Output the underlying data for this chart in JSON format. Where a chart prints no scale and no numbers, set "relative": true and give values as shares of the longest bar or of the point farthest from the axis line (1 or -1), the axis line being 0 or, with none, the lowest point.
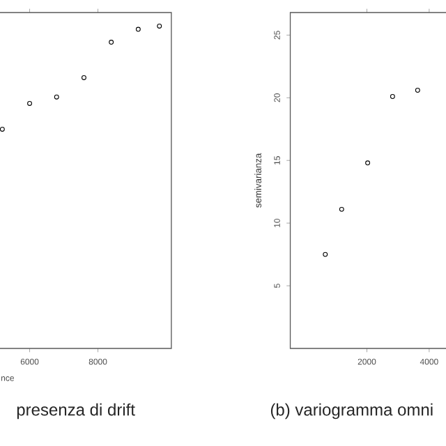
{
  "chart_data": [
    {
      "type": "scatter",
      "title": "presenza di drift",
      "xlabel": "nce",
      "relative": true,
      "marker": "circle",
      "grid": false,
      "x": [
        5200,
        6000,
        6790,
        7590,
        8390,
        9180,
        9800
      ],
      "values": [
        0.68,
        0.76,
        0.78,
        0.84,
        0.95,
        0.99,
        1.0
      ],
      "color": "#000000",
      "xlim": [
        4000,
        10150
      ],
      "xticks": [
        6000,
        8000
      ],
      "tick_labels": "x"
    },
    {
      "type": "scatter",
      "title": "(b) variogramma omni",
      "ylabel": "semivarianza",
      "marker": "circle",
      "grid": false,
      "x": [
        664,
        1190,
        2025,
        2825,
        3630
      ],
      "values": [
        7.5,
        11.1,
        14.8,
        20.1,
        20.6
      ],
      "color": "#000000",
      "xlim": [
        -460,
        5000
      ],
      "xticks": [
        2000,
        4000
      ],
      "ylim": [
        0,
        26.8
      ],
      "yticks": [
        5,
        10,
        15,
        20,
        25
      ]
    }
  ]
}
